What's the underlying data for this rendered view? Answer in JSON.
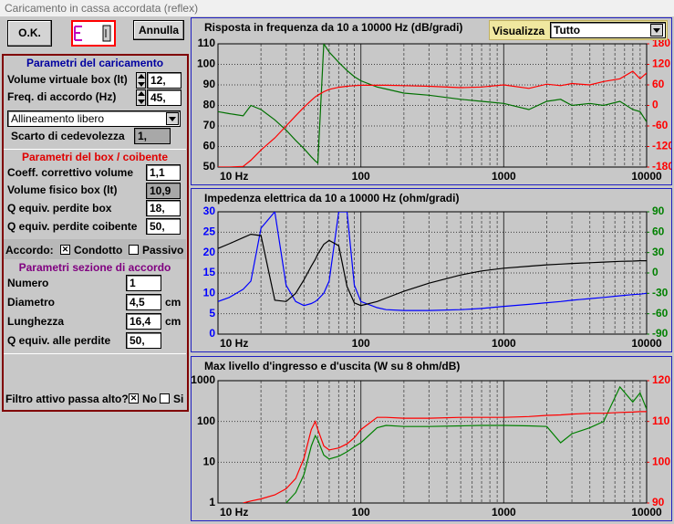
{
  "window": {
    "title": "Caricamento in cassa accordata (reflex)"
  },
  "buttons": {
    "ok": "O.K.",
    "annulla": "Annulla"
  },
  "caricamento": {
    "title": "Parametri del caricamento",
    "volume_label": "Volume virtuale box (lt)",
    "volume": "12,",
    "freq_label": "Freq. di accordo (Hz)",
    "freq": "45,",
    "allineamento": "Allineamento libero",
    "scarto_label": "Scarto di cedevolezza",
    "scarto": "1,"
  },
  "box": {
    "title": "Parametri del box / coibente",
    "coeff_label": "Coeff. correttivo volume",
    "coeff": "1,1",
    "volfis_label": "Volume fisico box (lt)",
    "volfis": "10,9",
    "qbox_label": "Q equiv. perdite box",
    "qbox": "18,",
    "qcoib_label": "Q equiv. perdite coibente",
    "qcoib": "50,"
  },
  "accordo": {
    "label": "Accordo:",
    "options": [
      {
        "label": "Condotto",
        "checked": true
      },
      {
        "label": "Passivo",
        "checked": false
      }
    ]
  },
  "sezione": {
    "title": "Parametri sezione di accordo",
    "rows": [
      {
        "label": "Numero",
        "value": "1"
      },
      {
        "label": "Diametro",
        "value": "4,5",
        "unit": "cm"
      },
      {
        "label": "Lunghezza",
        "value": "16,4",
        "unit": "cm"
      },
      {
        "label": "Q equiv. alle perdite",
        "value": "50,"
      }
    ]
  },
  "filtro": {
    "label": "Filtro attivo passa alto?",
    "options": [
      {
        "label": "No",
        "checked": true
      },
      {
        "label": "Si",
        "checked": false
      }
    ]
  },
  "view": {
    "label": "Visualizza",
    "value": "Tutto"
  },
  "charts": [
    {
      "type": "line",
      "title": "Risposta in frequenza da 10 a 10000 Hz (dB/gradi)",
      "xlog": true,
      "xlim": [
        10,
        10000
      ],
      "xticks": [
        {
          "value": 10,
          "label": "10 Hz"
        },
        100,
        1000,
        10000
      ],
      "ylim": [
        50,
        110
      ],
      "yticks": [
        50,
        60,
        70,
        80,
        90,
        100,
        110
      ],
      "ytick_color": "#000000",
      "y2lim": [
        -180,
        180
      ],
      "y2ticks": [
        -180,
        -120,
        -60,
        0,
        60,
        120,
        180
      ],
      "y2tick_color": "#ff0000",
      "grid": true,
      "x": [
        10,
        12,
        15,
        17,
        20,
        25,
        30,
        35,
        40,
        45,
        48,
        50,
        55,
        60,
        70,
        80,
        90,
        100,
        130,
        150,
        200,
        300,
        500,
        700,
        1000,
        1500,
        2000,
        2500,
        3000,
        4000,
        5000,
        6500,
        8000,
        9000,
        10000
      ],
      "series": [
        {
          "color": "#007000",
          "values": [
            77,
            76,
            75,
            80,
            78,
            73,
            68,
            63,
            59,
            55,
            53,
            52,
            110,
            106,
            101,
            97,
            94,
            92,
            89,
            88,
            86,
            85,
            83,
            82,
            81,
            78,
            82,
            83,
            80,
            81,
            80,
            82,
            78,
            77,
            72
          ]
        },
        {
          "color": "#ff0000",
          "axis": "y2",
          "values": [
            -180,
            -180,
            -178,
            -160,
            -130,
            -95,
            -60,
            -30,
            -5,
            15,
            25,
            30,
            40,
            47,
            53,
            56,
            58,
            59,
            59,
            59,
            58,
            56,
            52,
            54,
            60,
            50,
            62,
            58,
            64,
            60,
            70,
            78,
            100,
            78,
            95
          ]
        }
      ]
    },
    {
      "type": "line",
      "title": "Impedenza elettrica da 10 a 10000 Hz (ohm/gradi)",
      "xlog": true,
      "xlim": [
        10,
        10000
      ],
      "xticks": [
        {
          "value": 10,
          "label": "10 Hz"
        },
        100,
        1000,
        10000
      ],
      "ylim": [
        0,
        30
      ],
      "yticks": [
        0,
        5,
        10,
        15,
        20,
        25,
        30
      ],
      "ytick_color": "#0000ff",
      "y2lim": [
        -90,
        90
      ],
      "y2ticks": [
        -90,
        -60,
        -30,
        0,
        30,
        60,
        90
      ],
      "y2tick_color": "#008000",
      "grid": true,
      "x": [
        10,
        12,
        15,
        17,
        20,
        25,
        30,
        35,
        40,
        45,
        48,
        50,
        55,
        60,
        70,
        80,
        90,
        100,
        130,
        150,
        200,
        300,
        500,
        700,
        1000,
        1500,
        2000,
        2500,
        3000,
        4000,
        5000,
        6500,
        8000,
        9000,
        10000
      ],
      "series": [
        {
          "color": "#0000ff",
          "values": [
            8,
            9,
            11,
            13,
            26,
            30,
            12,
            8,
            7,
            7.5,
            8,
            8.5,
            10,
            13,
            30,
            30,
            12,
            8,
            6.5,
            6,
            5.8,
            5.8,
            6,
            6.3,
            6.8,
            7.3,
            7.7,
            8,
            8.3,
            8.7,
            9,
            9.4,
            9.7,
            9.8,
            10
          ]
        },
        {
          "color": "#000000",
          "axis": "y2",
          "values": [
            36,
            43,
            52,
            57,
            55,
            -40,
            -42,
            -30,
            -10,
            10,
            20,
            28,
            42,
            48,
            40,
            -20,
            -44,
            -48,
            -42,
            -37,
            -27,
            -15,
            -3,
            3,
            7,
            10,
            12,
            13,
            14,
            15,
            16,
            17,
            17.5,
            18,
            18
          ]
        }
      ]
    },
    {
      "type": "line",
      "title": "Max livello d'ingresso e d'uscita (W su 8 ohm/dB)",
      "xlog": true,
      "xlim": [
        10,
        10000
      ],
      "xticks": [
        {
          "value": 10,
          "label": "10 Hz"
        },
        100,
        1000,
        10000
      ],
      "ylog": true,
      "ylim": [
        1,
        1000
      ],
      "yticks": [
        1,
        10,
        100,
        1000
      ],
      "ytick_color": "#000000",
      "y2lim": [
        90,
        120
      ],
      "y2ticks": [
        90,
        100,
        110,
        120
      ],
      "y2tick_color": "#ff0000",
      "grid": true,
      "x": [
        10,
        12,
        15,
        17,
        20,
        25,
        30,
        35,
        40,
        45,
        48,
        50,
        55,
        60,
        70,
        80,
        90,
        100,
        130,
        150,
        200,
        300,
        500,
        700,
        1000,
        1500,
        2000,
        2500,
        3000,
        4000,
        5000,
        6500,
        8000,
        9000,
        10000
      ],
      "series": [
        {
          "color": "#008000",
          "values": [
            null,
            null,
            null,
            null,
            null,
            null,
            1,
            1.8,
            5,
            25,
            45,
            35,
            15,
            12,
            14,
            18,
            24,
            30,
            70,
            80,
            75,
            75,
            78,
            80,
            80,
            78,
            75,
            30,
            50,
            70,
            100,
            700,
            300,
            500,
            200
          ]
        },
        {
          "color": "#ff0000",
          "axis": "y2",
          "values": [
            null,
            null,
            90,
            90.5,
            91,
            92,
            93.5,
            96,
            101,
            108,
            110,
            108,
            104,
            103,
            103.5,
            104.5,
            106,
            108,
            111,
            111,
            110.8,
            110.8,
            111,
            111,
            111,
            111.2,
            111.5,
            111.6,
            111.8,
            112,
            112,
            112.2,
            112.3,
            112.4,
            112.4
          ]
        }
      ]
    }
  ]
}
